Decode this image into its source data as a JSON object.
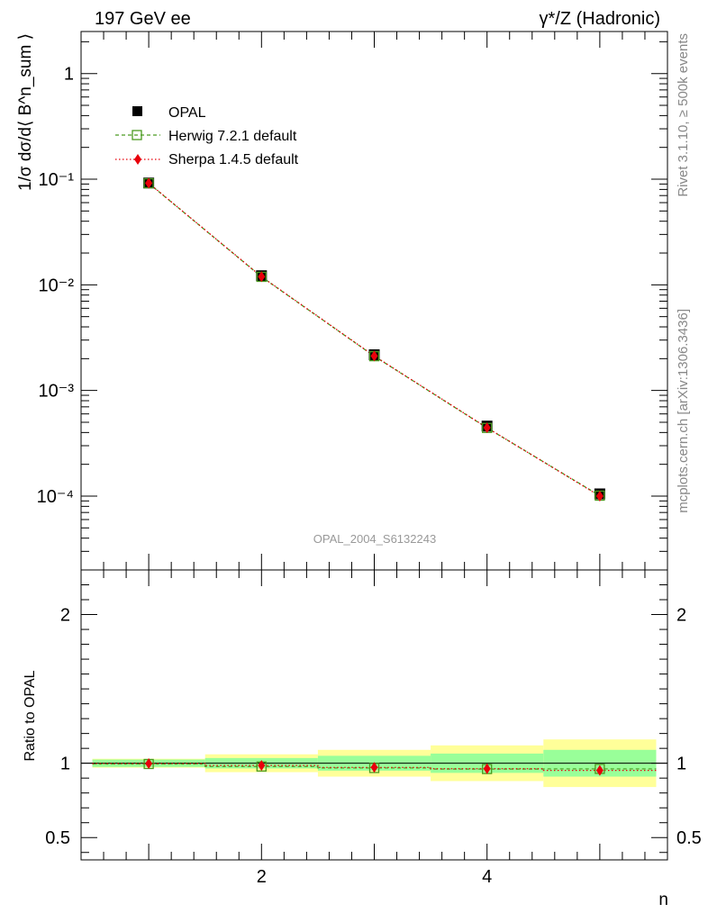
{
  "chart_data": {
    "type": "scatter",
    "title_left": "197 GeV ee",
    "title_right": "γ*/Z (Hadronic)",
    "analysis_id": "OPAL_2004_S6132243",
    "side_text_top": "Rivet 3.1.10, ≥ 500k events",
    "side_text_bottom": "mcplots.cern.ch [arXiv:1306.3436]",
    "main": {
      "ylabel": "1/σ dσ/d⟨ B^n_sum ⟩",
      "yscale": "log",
      "ylim": [
        2e-05,
        2.5
      ],
      "ytick_labels": [
        "1",
        "10⁻¹",
        "10⁻²",
        "10⁻³",
        "10⁻⁴"
      ],
      "series": [
        {
          "name": "OPAL",
          "x": [
            1,
            2,
            3,
            4,
            5
          ],
          "values": [
            0.092,
            0.0122,
            0.00218,
            0.00046,
            0.000105
          ],
          "color": "#000000"
        },
        {
          "name": "Herwig 7.2.1 default",
          "x": [
            1,
            2,
            3,
            4,
            5
          ],
          "values": [
            0.0915,
            0.0119,
            0.00211,
            0.000442,
            0.000101
          ],
          "color": "#4a9a20"
        },
        {
          "name": "Sherpa 1.4.5 default",
          "x": [
            1,
            2,
            3,
            4,
            5
          ],
          "values": [
            0.0918,
            0.01195,
            0.00212,
            0.000444,
            0.0001
          ],
          "color": "#e8000b"
        }
      ]
    },
    "ratio": {
      "ylabel": "Ratio to OPAL",
      "ylim": [
        0.35,
        2.3
      ],
      "ytick_labels": [
        "0.5",
        "1",
        "2"
      ],
      "xlabel": "n",
      "xlim": [
        0.4,
        5.6
      ],
      "xtick_labels": [
        "2",
        "4"
      ],
      "bins": [
        [
          0.5,
          1.5
        ],
        [
          1.5,
          2.5
        ],
        [
          2.5,
          3.5
        ],
        [
          3.5,
          4.5
        ],
        [
          4.5,
          5.5
        ]
      ],
      "band_inner": [
        0.025,
        0.035,
        0.05,
        0.065,
        0.09
      ],
      "band_outer": [
        0.03,
        0.06,
        0.09,
        0.12,
        0.16
      ],
      "herwig": [
        0.995,
        0.978,
        0.968,
        0.961,
        0.962
      ],
      "sherpa": [
        0.998,
        0.985,
        0.972,
        0.963,
        0.952
      ]
    },
    "legend": [
      "OPAL",
      "Herwig 7.2.1 default",
      "Sherpa 1.4.5 default"
    ]
  }
}
